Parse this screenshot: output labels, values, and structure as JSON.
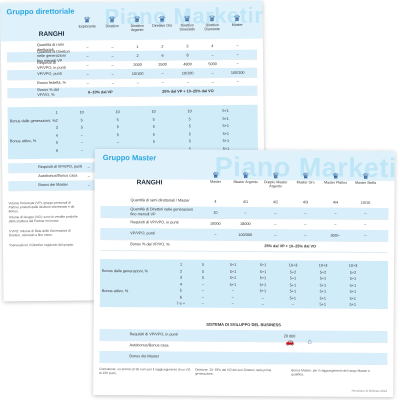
{
  "back_sheet": {
    "title": "Gruppo direttoriale",
    "watermark": "Piano Marketing",
    "ranks_header": "RANGHI",
    "ranks": [
      "Esplorante",
      "Direttivo",
      "Direttivo Argento",
      "Direttivo Oro",
      "Direttivo Smeraldo",
      "Direttivo Diamante",
      "Master"
    ],
    "rows": [
      {
        "label": "Quantità di rami direttoriali",
        "cells": [
          "–",
          "–",
          "1",
          "2",
          "3",
          "4",
          "–"
        ]
      },
      {
        "label": "Quantità di Direttori nelle generazioni fino mensili VP",
        "cells": [
          "–",
          "–",
          "2",
          "6",
          "8",
          "–",
          "–"
        ]
      },
      {
        "label": "Requisiti di VP/VPO, in punti",
        "cells": [
          "–",
          "–",
          "2000",
          "3500",
          "4800",
          "5000",
          "–"
        ]
      },
      {
        "label": "VP/VPO, punti",
        "cells": [
          "–",
          "–",
          "10/100",
          "–",
          "10/100",
          "–",
          "100/300"
        ]
      },
      {
        "label": "Bonus fedeltà, %",
        "cells": [
          "–",
          "–",
          "–",
          "–",
          "–",
          "–",
          "–"
        ]
      },
      {
        "label": "Bonus % dal VP/VO, %",
        "cells": [
          "6–10% dal VP",
          "25% dal VP + 10–25% dal VO"
        ]
      }
    ],
    "block_label_1": "Bonus dalle generazioni, %",
    "block_label_2": "Bonus attivo, %",
    "gen_rows": [
      {
        "n": "1",
        "cells": [
          "10",
          "10",
          "10",
          "10",
          "5+1"
        ]
      },
      {
        "n": "2",
        "cells": [
          "5",
          "5",
          "5",
          "5",
          "5+1"
        ]
      },
      {
        "n": "3",
        "cells": [
          "5",
          "5",
          "5",
          "5",
          "5+1"
        ]
      },
      {
        "n": "4",
        "cells": [
          "–",
          "5",
          "5",
          "5",
          "5+1"
        ]
      },
      {
        "n": "5",
        "cells": [
          "–",
          "–",
          "5",
          "5",
          "5+1"
        ]
      },
      {
        "n": "6",
        "cells": [
          "–",
          "–",
          "–",
          "5",
          "5+1"
        ]
      }
    ],
    "footer_rows": [
      {
        "label": "Requisiti di VP/VPO, punti",
        "cells": [
          "–",
          "–",
          "–",
          "–",
          "–"
        ]
      },
      {
        "label": "Autobonus/Bonus casa",
        "cells": [
          "–",
          "–",
          "–",
          "–",
          "–"
        ]
      },
      {
        "label": "Bonus dei Master",
        "cells": [
          "–",
          "–",
          "–",
          "–",
          "–"
        ]
      }
    ],
    "notes": [
      "Volume Personale (VP): gruppo personali di Partner prodotti dalle strutture interessate e da Bonus.",
      "Volume di Gruppo (VG): sono le vendite prodotte dalla struttura del Partner nel mese.",
      "Il VPO: Volume di Rete delle Generazioni di Direttori, calcolato a fine mese.",
      "*Generazioni: il Direttivo raggiunto dal gruppo."
    ]
  },
  "front_sheet": {
    "title": "Gruppo Master",
    "watermark": "Piano Marketing",
    "ranks_header": "RANGHI",
    "ranks": [
      "Master",
      "Master Argento",
      "Doppio Master Argento",
      "Master Oro",
      "Master Platino",
      "Master Stella"
    ],
    "rows": [
      {
        "label": "Quantità di rami direttoriali / Master",
        "cells": [
          "4",
          "4/1",
          "4/2",
          "4/3",
          "4/4",
          "10/10"
        ]
      },
      {
        "label": "Quantità di Direttori nelle generazioni fino mensili VP",
        "cells": [
          "10",
          "–",
          "–",
          "–",
          "–",
          "–"
        ]
      },
      {
        "label": "Requisiti di VP/VPO, in punti",
        "cells": [
          "10000",
          "18000",
          "–",
          "–",
          "–",
          "–"
        ]
      },
      {
        "label": "VP/VPO, punti",
        "cells": [
          "–",
          "100/300",
          "–",
          "–",
          "300/–",
          "–"
        ]
      },
      {
        "label": "Bonus % dal VP/VO, %",
        "cells": [
          "25% dal VP + 10–25% dal VO"
        ]
      }
    ],
    "block_label_1": "Bonus dalle generazioni, %",
    "block_label_2": "Bonus attivo, %",
    "gen_rows": [
      {
        "n": "1",
        "cells": [
          "5",
          "5+1",
          "5+1",
          "10+3",
          "10+3",
          "10+3"
        ]
      },
      {
        "n": "2",
        "cells": [
          "5",
          "5+1",
          "5+1",
          "5+2",
          "5+2",
          "5+2"
        ]
      },
      {
        "n": "3",
        "cells": [
          "5",
          "5+1",
          "5+1",
          "5+1",
          "5+1",
          "5+1"
        ]
      },
      {
        "n": "4",
        "cells": [
          "–",
          "5+1",
          "5+1",
          "5+1",
          "5+1",
          "5+1"
        ]
      },
      {
        "n": "5",
        "cells": [
          "–",
          "–",
          "5+1",
          "5+1",
          "5+1",
          "5+1"
        ]
      },
      {
        "n": "6",
        "cells": [
          "–",
          "–",
          "–",
          "5+1",
          "5+1",
          "5+1"
        ]
      },
      {
        "n": "7 e +",
        "cells": [
          "–",
          "–",
          "–",
          "–",
          "5+1",
          "5+1"
        ]
      }
    ],
    "center_label": "SISTEMA DI SVILUPPO DEL BUSINESS",
    "footer_rows": [
      {
        "label": "Requisiti di VP/VPO, in punti",
        "value": "20 000"
      },
      {
        "label": "Autobonus/Bonus casa",
        "value": ""
      },
      {
        "label": "Bonus dei Master",
        "value": ""
      }
    ],
    "notes": [
      "Consulente: un premio di 50 euro per il raggiungimento di un VO di 150 punti.",
      "Direttore: 15–18% dal VO dei tuoi Direttori nella prima generazione.",
      "Bonus Master: per il raggiungimento del rango Master e qualifica."
    ],
    "footer_date": "Revisione di febbraio 2021"
  },
  "colors": {
    "accent": "#2aa7de",
    "header_bg": "#dff1fb",
    "shade": "#d8eefa",
    "icon": "#2a5d9a"
  },
  "icons": {
    "rank": "star-crown-icon",
    "car": "car-icon",
    "house": "house-icon"
  }
}
